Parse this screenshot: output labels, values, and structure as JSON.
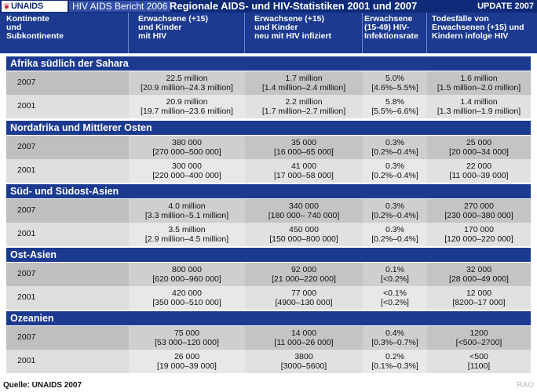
{
  "topbar": {
    "logo": "UNAIDS",
    "report": "HIV AIDS Bericht 2006",
    "title": "Regionale AIDS- und HIV-Statistiken 2001 und 2007",
    "update": "UPDATE 2007"
  },
  "header": {
    "col0": [
      "Kontinente",
      "und",
      "Subkontinente"
    ],
    "col1": [
      "Erwachsene (+15)",
      "und Kinder",
      "mit HIV"
    ],
    "col2": [
      "Erwachsene (+15)",
      "und Kinder",
      "neu mit HIV infiziert"
    ],
    "col3": [
      "Erwachsene",
      "(15-49) HIV-",
      "Infektionsrate"
    ],
    "col4": [
      "Todesfälle von",
      "Erwachsenen (+15) und",
      "Kindern infolge HIV"
    ]
  },
  "regions": [
    {
      "name": "Afrika südlich der Sahara",
      "rows": [
        {
          "year": "2007",
          "hiv": [
            "22.5 million",
            "[20.9 million–24.3 million]"
          ],
          "new": [
            "1.7 million",
            "[1.4 million–2.4 million]"
          ],
          "rate": [
            "5.0%",
            "[4.6%–5.5%]"
          ],
          "deaths": [
            "1.6 million",
            "[1.5 million–2.0 million]"
          ]
        },
        {
          "year": "2001",
          "hiv": [
            "20.9 million",
            "[19.7 million–23.6 million]"
          ],
          "new": [
            "2.2 million",
            "[1.7 million–2.7 million]"
          ],
          "rate": [
            "5.8%",
            "[5.5%–6.6%]"
          ],
          "deaths": [
            "1.4 million",
            "[1.3 million–1.9 million]"
          ]
        }
      ]
    },
    {
      "name": "Nordafrika und Mittlerer Osten",
      "rows": [
        {
          "year": "2007",
          "hiv": [
            "380 000",
            "[270 000–500 000]"
          ],
          "new": [
            "35 000",
            "[16 000–65 000]"
          ],
          "rate": [
            "0.3%",
            "[0.2%–0.4%]"
          ],
          "deaths": [
            "25 000",
            "[20 000–34 000]"
          ]
        },
        {
          "year": "2001",
          "hiv": [
            "300 000",
            "[220 000–400 000]"
          ],
          "new": [
            "41 000",
            "[17 000–58 000]"
          ],
          "rate": [
            "0.3%",
            "[0.2%–0.4%]"
          ],
          "deaths": [
            "22 000",
            "[11 000–39 000]"
          ]
        }
      ]
    },
    {
      "name": "Süd- und Südost-Asien",
      "rows": [
        {
          "year": "2007",
          "hiv": [
            "4.0 million",
            "[3.3 million–5.1 million]"
          ],
          "new": [
            "340 000",
            "[180 000– 740 000]"
          ],
          "rate": [
            "0.3%",
            "[0.2%–0.4%]"
          ],
          "deaths": [
            "270 000",
            "[230 000–380 000]"
          ]
        },
        {
          "year": "2001",
          "hiv": [
            "3.5 million",
            "[2.9 million–4.5 million]"
          ],
          "new": [
            "450 000",
            "[150 000–800 000]"
          ],
          "rate": [
            "0.3%",
            "[0.2%–0.4%]"
          ],
          "deaths": [
            "170 000",
            "[120 000–220 000]"
          ]
        }
      ]
    },
    {
      "name": "Ost-Asien",
      "rows": [
        {
          "year": "2007",
          "hiv": [
            "800 000",
            "[620 000–960 000]"
          ],
          "new": [
            "92 000",
            "[21 000–220 000]"
          ],
          "rate": [
            "0.1%",
            "[<0.2%]"
          ],
          "deaths": [
            "32 000",
            "[28 000–49 000]"
          ]
        },
        {
          "year": "2001",
          "hiv": [
            "420 000",
            "[350 000–510 000]"
          ],
          "new": [
            "77 000",
            "[4900–130 000]"
          ],
          "rate": [
            "<0.1%",
            "[<0.2%]"
          ],
          "deaths": [
            "12 000",
            "[8200–17 000]"
          ]
        }
      ]
    },
    {
      "name": "Ozeanien",
      "rows": [
        {
          "year": "2007",
          "hiv": [
            "75 000",
            "[53 000–120 000]"
          ],
          "new": [
            "14 000",
            "[11 000–26 000]"
          ],
          "rate": [
            "0.4%",
            "[0.3%–0.7%]"
          ],
          "deaths": [
            "1200",
            "[<500–2700]"
          ]
        },
        {
          "year": "2001",
          "hiv": [
            "26 000",
            "[19 000–39 000]"
          ],
          "new": [
            "3800",
            "[3000–5600]"
          ],
          "rate": [
            "0.2%",
            "[0.1%–0.3%]"
          ],
          "deaths": [
            "<500",
            "[1100]"
          ]
        }
      ]
    }
  ],
  "footer": {
    "source": "Quelle: UNAIDS 2007",
    "credit": "RAO"
  }
}
